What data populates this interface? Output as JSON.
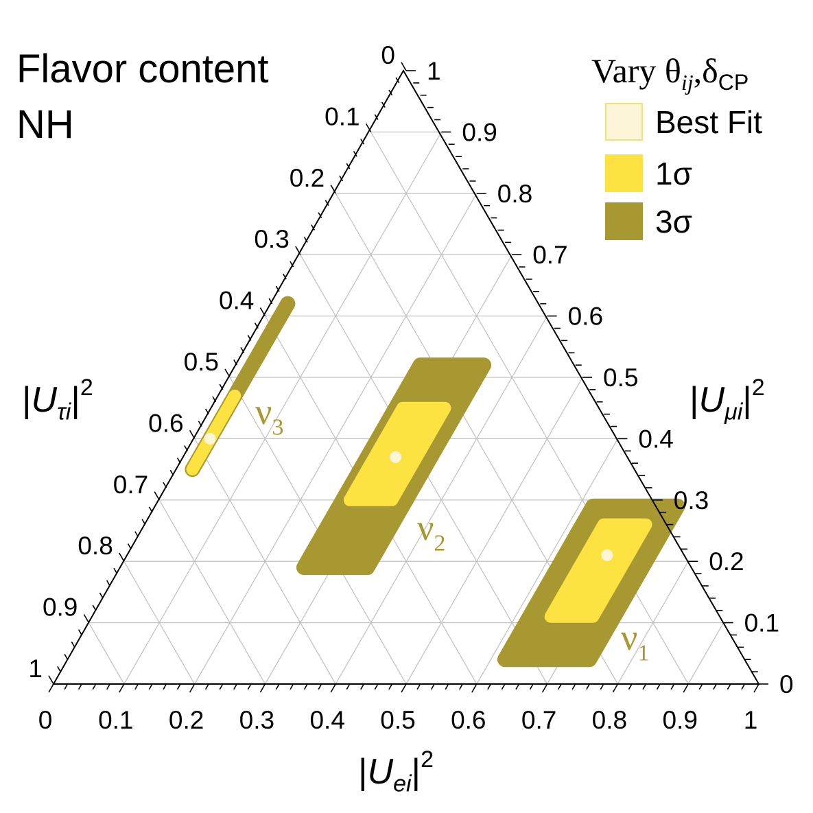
{
  "chart_data": {
    "type": "ternary",
    "title": {
      "line1": "Flavor content",
      "line2": "NH"
    },
    "axes": {
      "bottom": {
        "bar": "|",
        "symbol": "U",
        "sub": "ei",
        "sup": "2",
        "range": [
          0,
          1
        ],
        "ticks": [
          "0",
          "0.1",
          "0.2",
          "0.3",
          "0.4",
          "0.5",
          "0.6",
          "0.7",
          "0.8",
          "0.9",
          "1"
        ]
      },
      "right": {
        "bar": "|",
        "symbol": "U",
        "sub": "μi",
        "sup": "2",
        "range": [
          0,
          1
        ],
        "ticks": [
          "0",
          "0.1",
          "0.2",
          "0.3",
          "0.4",
          "0.5",
          "0.6",
          "0.7",
          "0.8",
          "0.9",
          "1"
        ]
      },
      "left": {
        "bar": "|",
        "symbol": "U",
        "sub": "τi",
        "sup": "2",
        "range": [
          0,
          1
        ],
        "ticks": [
          "0",
          "0.1",
          "0.2",
          "0.3",
          "0.4",
          "0.5",
          "0.6",
          "0.7",
          "0.8",
          "0.9",
          "1"
        ]
      }
    },
    "grid": true,
    "legend": {
      "position": "top-right",
      "title": {
        "prefix": "Vary",
        "theta": "θ",
        "theta_sub": "ij",
        "separator": ",",
        "delta": "δ",
        "delta_sub": "CP"
      },
      "entries": [
        {
          "label": "Best Fit",
          "color": "#fdf5d8",
          "edge": "#efe07a"
        },
        {
          "label": "1σ",
          "color": "#fde341"
        },
        {
          "label": "3σ",
          "color": "#a89832"
        }
      ]
    },
    "colors": {
      "best_fit": "#fdf5d8",
      "one_sigma": "#fde341",
      "three_sigma": "#a89832",
      "grid": "#c4c4c4",
      "frame": "#000000"
    },
    "regions": [
      {
        "label": {
          "symbol": "ν",
          "index": "1"
        },
        "best_fit": {
          "Ue": 0.68,
          "Umu": 0.21,
          "Utau": 0.11
        },
        "one_sigma": {
          "Ue_range": [
            0.65,
            0.71
          ],
          "Umu_range": [
            0.11,
            0.26
          ]
        },
        "three_sigma": {
          "Ue_range": [
            0.62,
            0.74
          ],
          "Umu_range": [
            0.04,
            0.29
          ]
        }
      },
      {
        "label": {
          "symbol": "ν",
          "index": "2"
        },
        "best_fit": {
          "Ue": 0.3,
          "Umu": 0.37,
          "Utau": 0.33
        },
        "one_sigma": {
          "Ue_range": [
            0.27,
            0.33
          ],
          "Umu_range": [
            0.3,
            0.45
          ]
        },
        "three_sigma": {
          "Ue_range": [
            0.26,
            0.35
          ],
          "Umu_range": [
            0.19,
            0.52
          ]
        }
      },
      {
        "label": {
          "symbol": "ν",
          "index": "3"
        },
        "best_fit": {
          "Ue": 0.022,
          "Umu": 0.4,
          "Utau": 0.578
        },
        "one_sigma": {
          "Ue_range": [
            0.02,
            0.024
          ],
          "Umu_range": [
            0.35,
            0.47
          ]
        },
        "three_sigma": {
          "Ue_range": [
            0.02,
            0.024
          ],
          "Umu_range": [
            0.35,
            0.62
          ]
        }
      }
    ]
  }
}
